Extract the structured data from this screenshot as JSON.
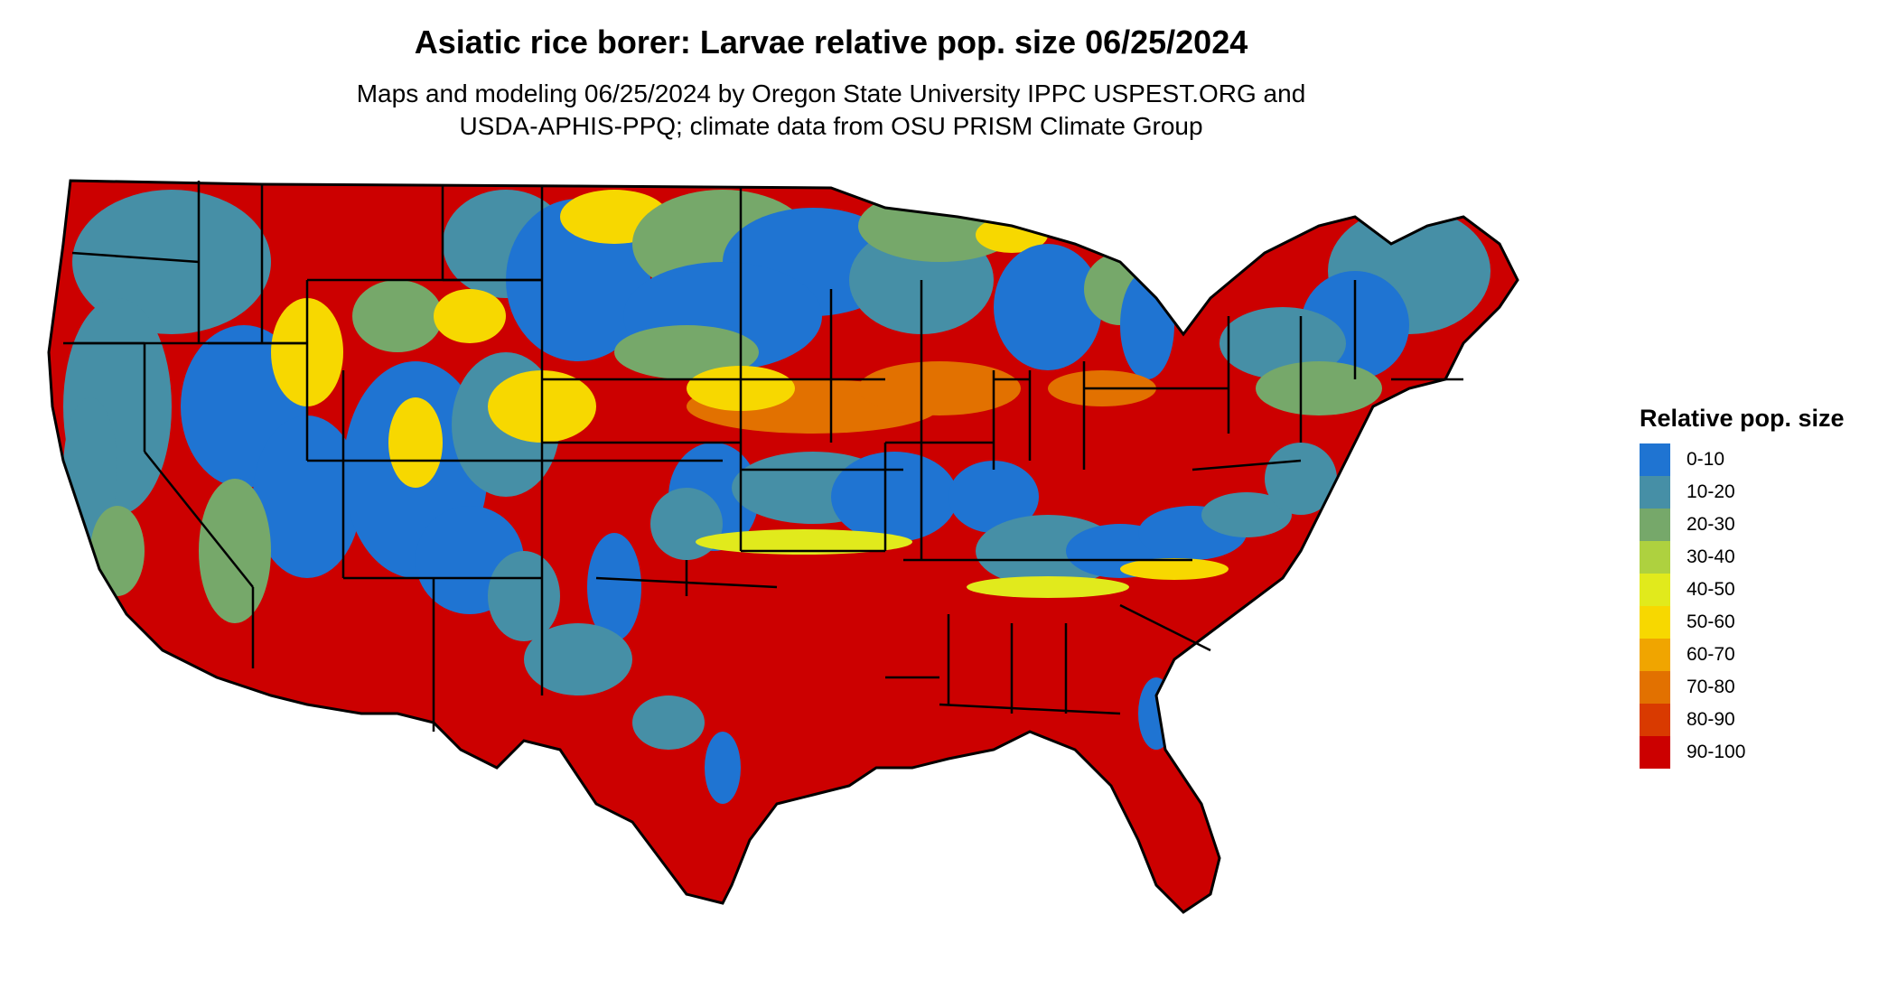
{
  "title": "Asiatic rice borer: Larvae relative pop. size 06/25/2024",
  "subtitle_line1": "Maps and modeling 06/25/2024 by Oregon State University IPPC USPEST.ORG and",
  "subtitle_line2": "USDA-APHIS-PPQ; climate data from OSU PRISM Climate Group",
  "legend": {
    "title": "Relative pop. size",
    "items": [
      {
        "label": "0-10",
        "color": "#1f74d2"
      },
      {
        "label": "10-20",
        "color": "#468fa6"
      },
      {
        "label": "20-30",
        "color": "#76a86a"
      },
      {
        "label": "30-40",
        "color": "#aed13f"
      },
      {
        "label": "40-50",
        "color": "#e1ea1c"
      },
      {
        "label": "50-60",
        "color": "#f7d800"
      },
      {
        "label": "60-70",
        "color": "#f0a500"
      },
      {
        "label": "70-80",
        "color": "#e27100"
      },
      {
        "label": "80-90",
        "color": "#d93a00"
      },
      {
        "label": "90-100",
        "color": "#cc0000"
      }
    ]
  },
  "map": {
    "region": "Contiguous United States",
    "state_border_color": "#000000"
  }
}
